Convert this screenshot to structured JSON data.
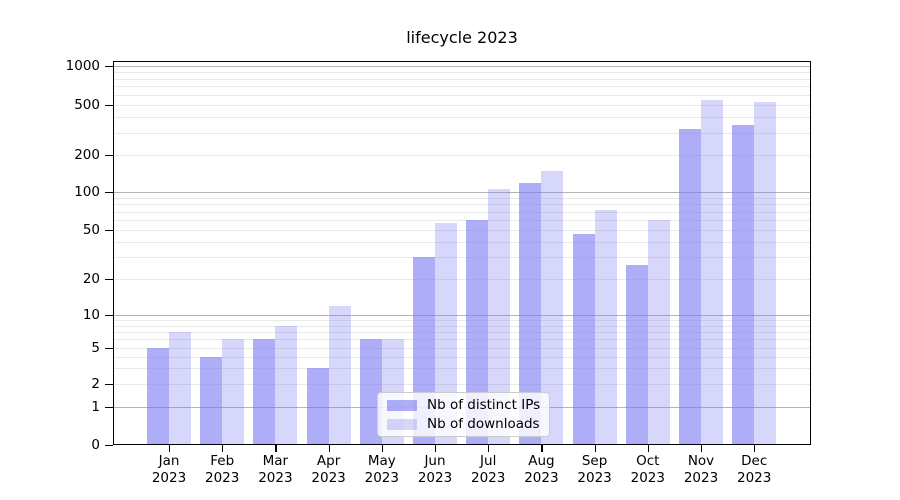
{
  "title": "lifecycle 2023",
  "chart_data": {
    "type": "bar",
    "title": "lifecycle 2023",
    "categories": [
      "Jan 2023",
      "Feb 2023",
      "Mar 2023",
      "Apr 2023",
      "May 2023",
      "Jun 2023",
      "Jul 2023",
      "Aug 2023",
      "Sep 2023",
      "Oct 2023",
      "Nov 2023",
      "Dec 2023"
    ],
    "series": [
      {
        "name": "Nb of distinct IPs",
        "color": "rgba(122,122,243,0.62)",
        "values": [
          5,
          4,
          6,
          3,
          6,
          30,
          60,
          118,
          46,
          26,
          320,
          346
        ]
      },
      {
        "name": "Nb of downloads",
        "color": "rgba(122,122,243,0.30)",
        "values": [
          7,
          6,
          8,
          12,
          6,
          57,
          106,
          148,
          72,
          60,
          547,
          526
        ]
      }
    ],
    "yscale": "symlog",
    "yticks": [
      0,
      1,
      2,
      5,
      10,
      20,
      50,
      100,
      200,
      500,
      1000
    ],
    "ylim": [
      0,
      1000
    ],
    "xlabel": "",
    "ylabel": "",
    "grid": true,
    "legend_position": "lower-center"
  },
  "colors": {
    "bar_dark": "rgba(122,122,243,0.62)",
    "bar_light": "rgba(122,122,243,0.30)",
    "major_grid": "#b4b4b4",
    "minor_grid": "#e9e9e9",
    "spine": "#000000",
    "background": "#ffffff"
  }
}
